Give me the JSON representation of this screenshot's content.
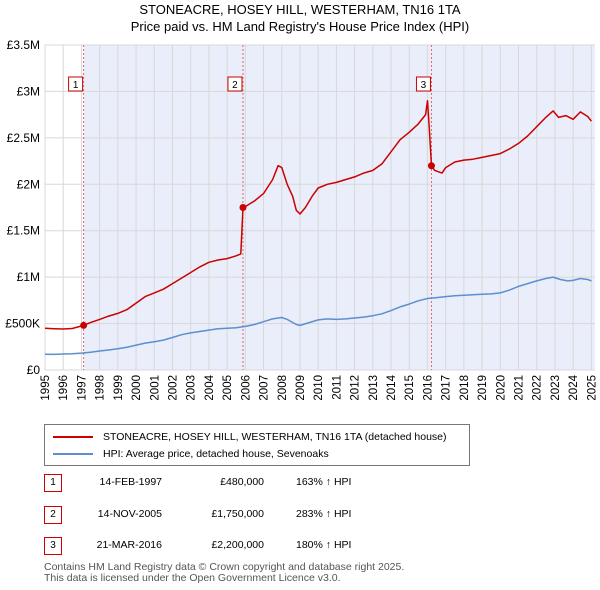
{
  "chart_data": {
    "type": "line",
    "title": "STONEACRE, HOSEY HILL, WESTERHAM, TN16 1TA",
    "subtitle": "Price paid vs. HM Land Registry's House Price Index (HPI)",
    "xlim": [
      1995,
      2025.2
    ],
    "ylim": [
      0,
      3500000
    ],
    "x_ticks": [
      1995,
      1996,
      1997,
      1998,
      1999,
      2000,
      2001,
      2002,
      2003,
      2004,
      2005,
      2006,
      2007,
      2008,
      2009,
      2010,
      2011,
      2012,
      2013,
      2014,
      2015,
      2016,
      2017,
      2018,
      2019,
      2020,
      2021,
      2022,
      2023,
      2024,
      2025
    ],
    "y_ticks": [
      0,
      500000,
      1000000,
      1500000,
      2000000,
      2500000,
      3000000,
      3500000
    ],
    "y_tick_labels": [
      "£0",
      "£500K",
      "£1M",
      "£1.5M",
      "£2M",
      "£2.5M",
      "£3M",
      "£3.5M"
    ],
    "series": [
      {
        "name": "STONEACRE, HOSEY HILL, WESTERHAM, TN16 1TA (detached house)",
        "color": "#cc0000",
        "points": [
          [
            1995.0,
            450000
          ],
          [
            1995.5,
            445000
          ],
          [
            1996.0,
            442000
          ],
          [
            1996.5,
            447000
          ],
          [
            1997.12,
            480000
          ],
          [
            1997.5,
            510000
          ],
          [
            1998.0,
            545000
          ],
          [
            1998.5,
            580000
          ],
          [
            1999.0,
            610000
          ],
          [
            1999.5,
            650000
          ],
          [
            2000.0,
            720000
          ],
          [
            2000.5,
            790000
          ],
          [
            2001.0,
            830000
          ],
          [
            2001.5,
            870000
          ],
          [
            2002.0,
            930000
          ],
          [
            2002.5,
            990000
          ],
          [
            2003.0,
            1050000
          ],
          [
            2003.5,
            1110000
          ],
          [
            2004.0,
            1160000
          ],
          [
            2004.5,
            1185000
          ],
          [
            2005.0,
            1200000
          ],
          [
            2005.5,
            1230000
          ],
          [
            2005.75,
            1250000
          ],
          [
            2005.87,
            1750000
          ],
          [
            2006.0,
            1760000
          ],
          [
            2006.5,
            1820000
          ],
          [
            2007.0,
            1900000
          ],
          [
            2007.5,
            2050000
          ],
          [
            2007.8,
            2200000
          ],
          [
            2008.0,
            2180000
          ],
          [
            2008.3,
            2000000
          ],
          [
            2008.6,
            1870000
          ],
          [
            2008.8,
            1720000
          ],
          [
            2009.0,
            1680000
          ],
          [
            2009.3,
            1750000
          ],
          [
            2009.7,
            1880000
          ],
          [
            2010.0,
            1960000
          ],
          [
            2010.5,
            2000000
          ],
          [
            2011.0,
            2020000
          ],
          [
            2011.5,
            2050000
          ],
          [
            2012.0,
            2080000
          ],
          [
            2012.5,
            2120000
          ],
          [
            2013.0,
            2150000
          ],
          [
            2013.5,
            2220000
          ],
          [
            2014.0,
            2350000
          ],
          [
            2014.5,
            2480000
          ],
          [
            2015.0,
            2560000
          ],
          [
            2015.5,
            2650000
          ],
          [
            2015.9,
            2750000
          ],
          [
            2016.0,
            2900000
          ],
          [
            2016.1,
            2600000
          ],
          [
            2016.22,
            2200000
          ],
          [
            2016.4,
            2150000
          ],
          [
            2016.8,
            2120000
          ],
          [
            2017.0,
            2180000
          ],
          [
            2017.5,
            2240000
          ],
          [
            2018.0,
            2260000
          ],
          [
            2018.5,
            2270000
          ],
          [
            2019.0,
            2290000
          ],
          [
            2019.5,
            2310000
          ],
          [
            2020.0,
            2330000
          ],
          [
            2020.5,
            2380000
          ],
          [
            2021.0,
            2440000
          ],
          [
            2021.5,
            2520000
          ],
          [
            2022.0,
            2620000
          ],
          [
            2022.5,
            2720000
          ],
          [
            2022.9,
            2790000
          ],
          [
            2023.2,
            2720000
          ],
          [
            2023.6,
            2740000
          ],
          [
            2024.0,
            2700000
          ],
          [
            2024.4,
            2780000
          ],
          [
            2024.8,
            2730000
          ],
          [
            2025.0,
            2680000
          ]
        ]
      },
      {
        "name": "HPI: Average price, detached house, Sevenoaks",
        "color": "#5b8fcf",
        "points": [
          [
            1995.0,
            170000
          ],
          [
            1995.5,
            168000
          ],
          [
            1996.0,
            172000
          ],
          [
            1996.5,
            176000
          ],
          [
            1997.0,
            182000
          ],
          [
            1997.5,
            192000
          ],
          [
            1998.0,
            205000
          ],
          [
            1998.5,
            215000
          ],
          [
            1999.0,
            228000
          ],
          [
            1999.5,
            245000
          ],
          [
            2000.0,
            268000
          ],
          [
            2000.5,
            290000
          ],
          [
            2001.0,
            305000
          ],
          [
            2001.5,
            322000
          ],
          [
            2002.0,
            350000
          ],
          [
            2002.5,
            380000
          ],
          [
            2003.0,
            400000
          ],
          [
            2003.5,
            415000
          ],
          [
            2004.0,
            430000
          ],
          [
            2004.5,
            445000
          ],
          [
            2005.0,
            450000
          ],
          [
            2005.5,
            455000
          ],
          [
            2006.0,
            470000
          ],
          [
            2006.5,
            490000
          ],
          [
            2007.0,
            520000
          ],
          [
            2007.5,
            550000
          ],
          [
            2008.0,
            565000
          ],
          [
            2008.3,
            545000
          ],
          [
            2008.8,
            490000
          ],
          [
            2009.0,
            480000
          ],
          [
            2009.5,
            510000
          ],
          [
            2010.0,
            540000
          ],
          [
            2010.5,
            550000
          ],
          [
            2011.0,
            545000
          ],
          [
            2011.5,
            550000
          ],
          [
            2012.0,
            560000
          ],
          [
            2012.5,
            570000
          ],
          [
            2013.0,
            585000
          ],
          [
            2013.5,
            605000
          ],
          [
            2014.0,
            640000
          ],
          [
            2014.5,
            680000
          ],
          [
            2015.0,
            710000
          ],
          [
            2015.5,
            745000
          ],
          [
            2016.0,
            770000
          ],
          [
            2016.5,
            780000
          ],
          [
            2017.0,
            790000
          ],
          [
            2017.5,
            800000
          ],
          [
            2018.0,
            805000
          ],
          [
            2018.5,
            810000
          ],
          [
            2019.0,
            815000
          ],
          [
            2019.5,
            820000
          ],
          [
            2020.0,
            830000
          ],
          [
            2020.5,
            860000
          ],
          [
            2021.0,
            900000
          ],
          [
            2021.5,
            930000
          ],
          [
            2022.0,
            960000
          ],
          [
            2022.5,
            985000
          ],
          [
            2022.9,
            1000000
          ],
          [
            2023.3,
            975000
          ],
          [
            2023.7,
            960000
          ],
          [
            2024.0,
            965000
          ],
          [
            2024.4,
            985000
          ],
          [
            2024.8,
            975000
          ],
          [
            2025.0,
            960000
          ]
        ]
      }
    ],
    "sales": [
      {
        "label": "1",
        "x": 1997.12,
        "y": 480000
      },
      {
        "label": "2",
        "x": 2005.87,
        "y": 1750000
      },
      {
        "label": "3",
        "x": 2016.22,
        "y": 2200000
      }
    ]
  },
  "legend": {
    "property": "STONEACRE, HOSEY HILL, WESTERHAM, TN16 1TA (detached house)",
    "hpi": "HPI: Average price, detached house, Sevenoaks"
  },
  "transactions": [
    {
      "num": "1",
      "date": "14-FEB-1997",
      "price": "£480,000",
      "hpi": "163% ↑ HPI"
    },
    {
      "num": "2",
      "date": "14-NOV-2005",
      "price": "£1,750,000",
      "hpi": "283% ↑ HPI"
    },
    {
      "num": "3",
      "date": "21-MAR-2016",
      "price": "£2,200,000",
      "hpi": "180% ↑ HPI"
    }
  ],
  "footer": {
    "line1": "Contains HM Land Registry data © Crown copyright and database right 2025.",
    "line2": "This data is licensed under the Open Government Licence v3.0."
  }
}
